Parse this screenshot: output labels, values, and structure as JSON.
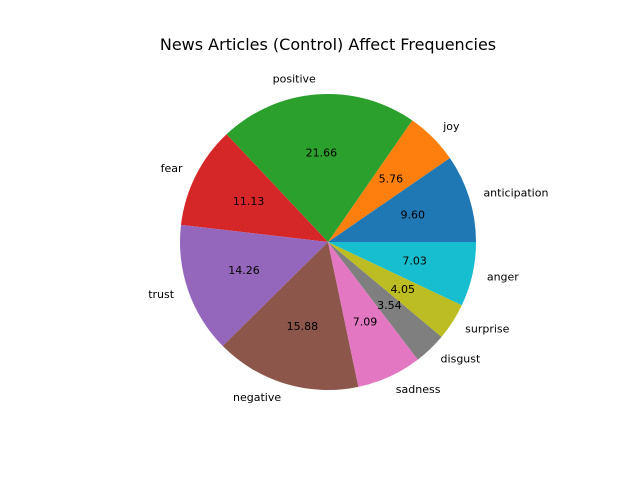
{
  "chart_data": {
    "type": "pie",
    "title": "News Articles (Control) Affect Frequencies",
    "slices": [
      {
        "label": "anticipation",
        "value": 9.6,
        "pct_label": "9.60",
        "color": "#1f77b4"
      },
      {
        "label": "joy",
        "value": 5.76,
        "pct_label": "5.76",
        "color": "#ff7f0e"
      },
      {
        "label": "positive",
        "value": 21.66,
        "pct_label": "21.66",
        "color": "#2ca02c"
      },
      {
        "label": "fear",
        "value": 11.13,
        "pct_label": "11.13",
        "color": "#d62728"
      },
      {
        "label": "trust",
        "value": 14.26,
        "pct_label": "14.26",
        "color": "#9467bd"
      },
      {
        "label": "negative",
        "value": 15.88,
        "pct_label": "15.88",
        "color": "#8c564b"
      },
      {
        "label": "sadness",
        "value": 7.09,
        "pct_label": "7.09",
        "color": "#e377c2"
      },
      {
        "label": "disgust",
        "value": 3.54,
        "pct_label": "3.54",
        "color": "#7f7f7f"
      },
      {
        "label": "surprise",
        "value": 4.05,
        "pct_label": "4.05",
        "color": "#bcbd22"
      },
      {
        "label": "anger",
        "value": 7.03,
        "pct_label": "7.03",
        "color": "#17becf"
      }
    ],
    "start_angle_deg": 0,
    "direction": "counterclockwise",
    "legend": "none"
  }
}
